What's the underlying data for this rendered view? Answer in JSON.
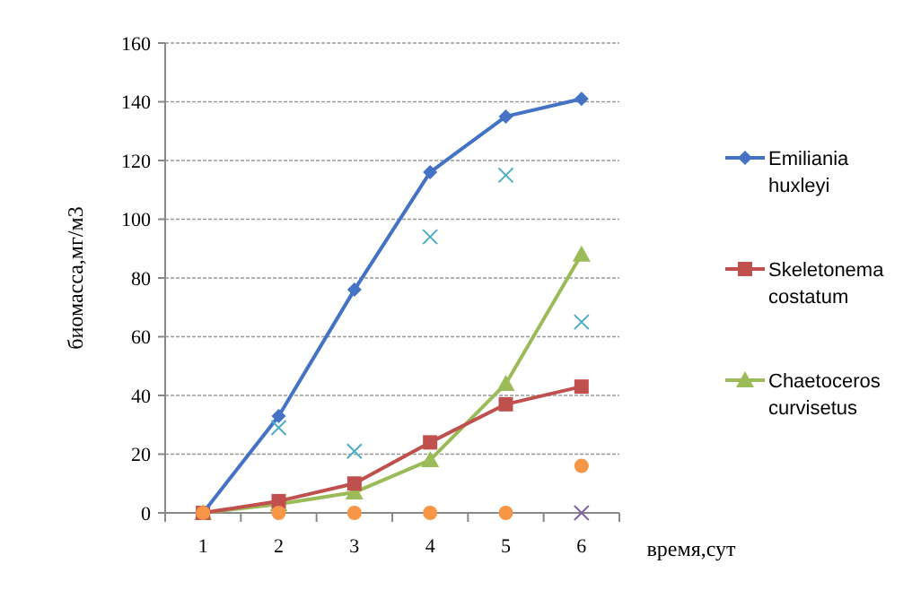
{
  "chart_data": {
    "type": "line",
    "xlabel": "время,сут",
    "ylabel": "биомасса,мг/м3",
    "categories": [
      "1",
      "2",
      "3",
      "4",
      "5",
      "6"
    ],
    "ylim": [
      0,
      160
    ],
    "yticks": [
      0,
      20,
      40,
      60,
      80,
      100,
      120,
      140,
      160
    ],
    "grid": "y",
    "legend": "right",
    "series": [
      {
        "name": "Emiliania huxleyi",
        "color": "#4472c4",
        "marker": "diamond",
        "values": [
          0,
          33,
          76,
          116,
          135,
          141
        ]
      },
      {
        "name": "Skeletonema costatum",
        "color": "#c0504d",
        "marker": "square",
        "values": [
          0,
          4,
          10,
          24,
          37,
          43
        ]
      },
      {
        "name": "Chaetoceros curvisetus",
        "color": "#9bbb59",
        "marker": "triangle",
        "values": [
          0,
          3,
          7,
          18,
          44,
          88
        ]
      },
      {
        "type": "scatter",
        "color": "#4bacc6",
        "marker": "cross",
        "values": [
          null,
          29,
          21,
          94,
          115,
          65
        ]
      },
      {
        "type": "scatter",
        "color": "#f79646",
        "marker": "circle",
        "values": [
          0,
          0,
          0,
          0,
          0,
          16
        ]
      },
      {
        "type": "scatter",
        "color": "#8064a2",
        "marker": "cross",
        "values": [
          null,
          null,
          null,
          null,
          null,
          0
        ]
      }
    ]
  }
}
